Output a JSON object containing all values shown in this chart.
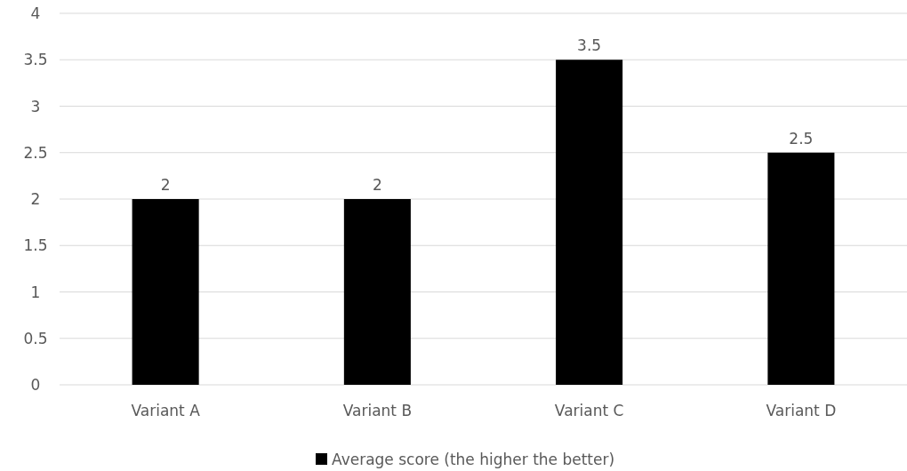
{
  "chart_data": {
    "type": "bar",
    "categories": [
      "Variant A",
      "Variant B",
      "Variant C",
      "Variant D"
    ],
    "series": [
      {
        "name": "Average score (the higher the better)",
        "color": "#000000",
        "values": [
          2,
          2,
          3.5,
          2.5
        ]
      }
    ],
    "ylim": [
      0,
      4
    ],
    "yticks": [
      0,
      0.5,
      1,
      1.5,
      2,
      2.5,
      3,
      3.5,
      4
    ],
    "grid": "y",
    "legend": "bottom",
    "data_labels": true
  }
}
